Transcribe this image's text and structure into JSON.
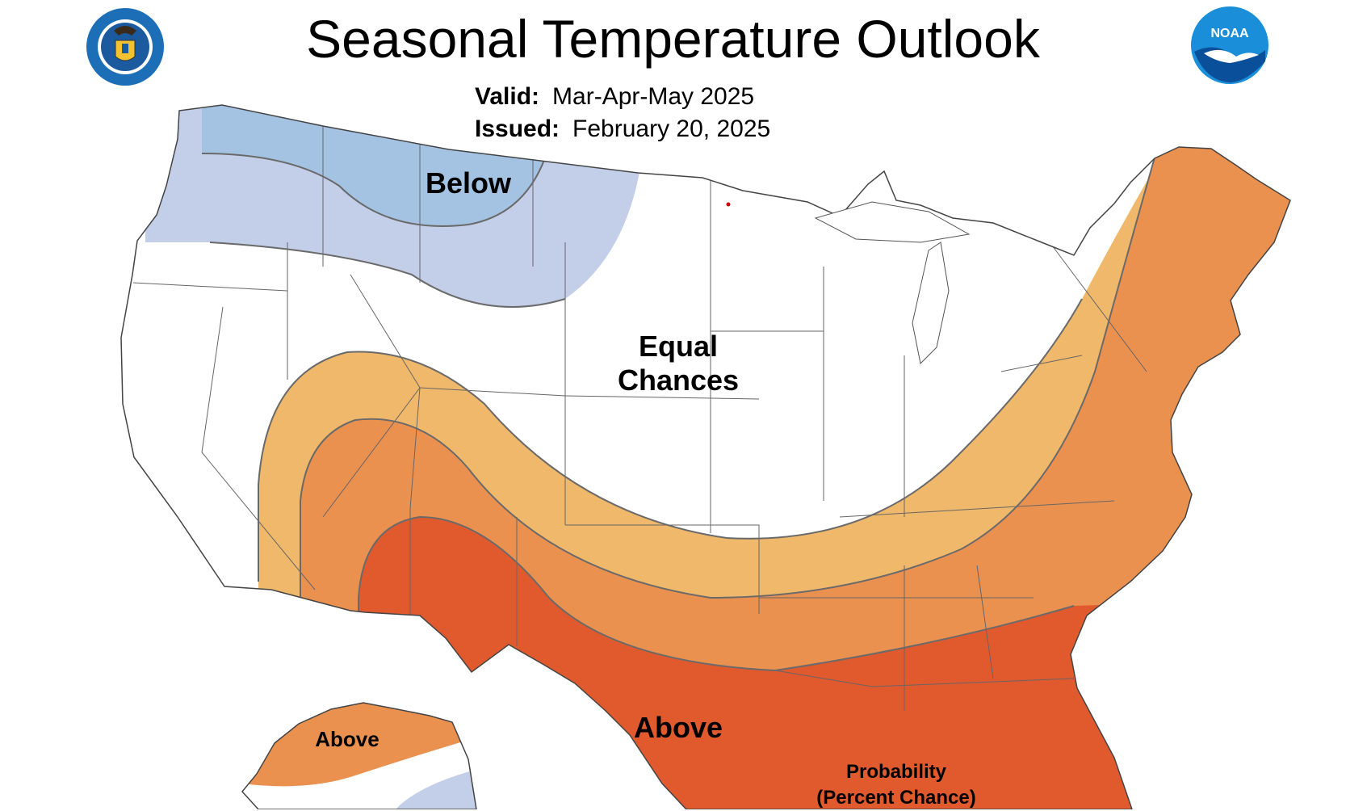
{
  "title": "Seasonal Temperature Outlook",
  "valid": {
    "label": "Valid:",
    "value": "Mar-Apr-May 2025"
  },
  "issued": {
    "label": "Issued:",
    "value": "February 20, 2025"
  },
  "logos": {
    "left": "Department of Commerce seal",
    "right": "NOAA"
  },
  "noaa_text": "NOAA",
  "regions": {
    "below": "Below",
    "equal_line1": "Equal",
    "equal_line2": "Chances",
    "above": "Above",
    "alaska_above": "Above"
  },
  "legend": {
    "line1": "Probability",
    "line2": "(Percent Chance)"
  },
  "colors": {
    "below_light": "#c3cfe8",
    "below_dark": "#a4c2e2",
    "above_1": "#f0b86a",
    "above_2": "#eb9150",
    "above_3": "#e05a2e",
    "boundary": "#555555"
  }
}
